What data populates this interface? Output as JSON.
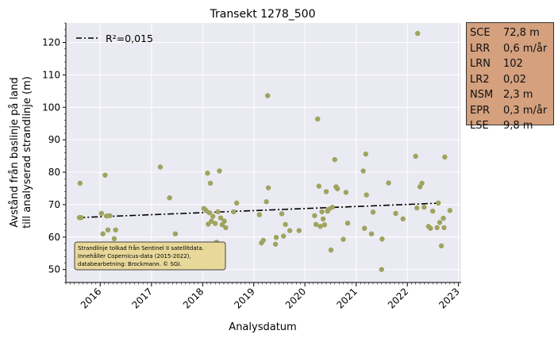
{
  "chart_data": {
    "type": "scatter",
    "title": "Transekt 1278_500",
    "xlabel": "Analysdatum",
    "ylabel_line1": "Avstånd från baslinje på land",
    "ylabel_line2": "till analyserad strandlinje (m)",
    "x_range": [
      "2015-05-01",
      "2023-01-20"
    ],
    "ylim": [
      46,
      126
    ],
    "x_ticks": [
      "2016",
      "2017",
      "2018",
      "2019",
      "2020",
      "2021",
      "2022",
      "2023"
    ],
    "y_ticks": [
      50,
      60,
      70,
      80,
      90,
      100,
      110,
      120
    ],
    "grid": true,
    "legend": {
      "position": "top-left",
      "label": "R²=0,015"
    },
    "trend": {
      "x": [
        "2015-08-01",
        "2022-09-10"
      ],
      "y": [
        66,
        70.5
      ]
    },
    "points": [
      {
        "x": "2015-08-05",
        "y": 66.0
      },
      {
        "x": "2015-08-10",
        "y": 76.6
      },
      {
        "x": "2015-08-18",
        "y": 66.0
      },
      {
        "x": "2016-01-10",
        "y": 67.3
      },
      {
        "x": "2016-01-20",
        "y": 61.0
      },
      {
        "x": "2016-02-05",
        "y": 79.1
      },
      {
        "x": "2016-02-15",
        "y": 66.5
      },
      {
        "x": "2016-02-25",
        "y": 62.2
      },
      {
        "x": "2016-03-10",
        "y": 66.6
      },
      {
        "x": "2016-04-10",
        "y": 59.5
      },
      {
        "x": "2016-04-20",
        "y": 62.2
      },
      {
        "x": "2017-03-05",
        "y": 81.6
      },
      {
        "x": "2017-05-10",
        "y": 72.1
      },
      {
        "x": "2017-06-20",
        "y": 61.0
      },
      {
        "x": "2018-01-10",
        "y": 68.8
      },
      {
        "x": "2018-01-25",
        "y": 68.2
      },
      {
        "x": "2018-02-05",
        "y": 79.7
      },
      {
        "x": "2018-02-10",
        "y": 64.0
      },
      {
        "x": "2018-02-18",
        "y": 67.5
      },
      {
        "x": "2018-02-25",
        "y": 76.6
      },
      {
        "x": "2018-03-05",
        "y": 64.9
      },
      {
        "x": "2018-03-15",
        "y": 66.4
      },
      {
        "x": "2018-04-01",
        "y": 64.2
      },
      {
        "x": "2018-04-10",
        "y": 58.4
      },
      {
        "x": "2018-04-20",
        "y": 67.8
      },
      {
        "x": "2018-05-01",
        "y": 80.4
      },
      {
        "x": "2018-05-10",
        "y": 65.9
      },
      {
        "x": "2018-05-20",
        "y": 63.8
      },
      {
        "x": "2018-06-05",
        "y": 64.9
      },
      {
        "x": "2018-06-15",
        "y": 62.9
      },
      {
        "x": "2018-08-10",
        "y": 67.8
      },
      {
        "x": "2018-09-01",
        "y": 70.5
      },
      {
        "x": "2019-02-10",
        "y": 66.9
      },
      {
        "x": "2019-02-25",
        "y": 58.2
      },
      {
        "x": "2019-03-10",
        "y": 59.0
      },
      {
        "x": "2019-04-01",
        "y": 70.9
      },
      {
        "x": "2019-04-10",
        "y": 103.6
      },
      {
        "x": "2019-04-15",
        "y": 75.2
      },
      {
        "x": "2019-06-05",
        "y": 57.8
      },
      {
        "x": "2019-06-10",
        "y": 59.9
      },
      {
        "x": "2019-07-20",
        "y": 67.2
      },
      {
        "x": "2019-08-01",
        "y": 60.3
      },
      {
        "x": "2019-08-15",
        "y": 63.9
      },
      {
        "x": "2019-09-15",
        "y": 62.0
      },
      {
        "x": "2019-11-20",
        "y": 62.0
      },
      {
        "x": "2020-03-10",
        "y": 66.6
      },
      {
        "x": "2020-03-20",
        "y": 63.9
      },
      {
        "x": "2020-04-01",
        "y": 96.4
      },
      {
        "x": "2020-04-10",
        "y": 75.7
      },
      {
        "x": "2020-04-20",
        "y": 63.3
      },
      {
        "x": "2020-05-01",
        "y": 67.8
      },
      {
        "x": "2020-05-10",
        "y": 65.6
      },
      {
        "x": "2020-05-20",
        "y": 63.8
      },
      {
        "x": "2020-06-01",
        "y": 74.0
      },
      {
        "x": "2020-06-10",
        "y": 68.0
      },
      {
        "x": "2020-06-20",
        "y": 68.6
      },
      {
        "x": "2020-07-05",
        "y": 56.0
      },
      {
        "x": "2020-07-15",
        "y": 69.2
      },
      {
        "x": "2020-08-01",
        "y": 83.9
      },
      {
        "x": "2020-08-10",
        "y": 75.5
      },
      {
        "x": "2020-08-20",
        "y": 74.9
      },
      {
        "x": "2020-10-01",
        "y": 59.3
      },
      {
        "x": "2020-10-20",
        "y": 73.8
      },
      {
        "x": "2020-11-01",
        "y": 64.3
      },
      {
        "x": "2021-02-20",
        "y": 80.4
      },
      {
        "x": "2021-03-01",
        "y": 62.7
      },
      {
        "x": "2021-03-10",
        "y": 85.6
      },
      {
        "x": "2021-03-15",
        "y": 73.0
      },
      {
        "x": "2021-04-20",
        "y": 61.0
      },
      {
        "x": "2021-05-01",
        "y": 67.7
      },
      {
        "x": "2021-07-01",
        "y": 50.0
      },
      {
        "x": "2021-07-05",
        "y": 59.4
      },
      {
        "x": "2021-08-20",
        "y": 76.7
      },
      {
        "x": "2021-10-10",
        "y": 67.3
      },
      {
        "x": "2021-12-01",
        "y": 65.6
      },
      {
        "x": "2022-03-01",
        "y": 84.9
      },
      {
        "x": "2022-03-10",
        "y": 69.0
      },
      {
        "x": "2022-03-15",
        "y": 122.8
      },
      {
        "x": "2022-04-01",
        "y": 75.5
      },
      {
        "x": "2022-04-15",
        "y": 76.6
      },
      {
        "x": "2022-05-01",
        "y": 69.2
      },
      {
        "x": "2022-06-01",
        "y": 63.3
      },
      {
        "x": "2022-06-15",
        "y": 62.7
      },
      {
        "x": "2022-07-01",
        "y": 68.0
      },
      {
        "x": "2022-08-01",
        "y": 62.9
      },
      {
        "x": "2022-08-10",
        "y": 70.5
      },
      {
        "x": "2022-08-20",
        "y": 64.5
      },
      {
        "x": "2022-09-01",
        "y": 57.3
      },
      {
        "x": "2022-09-15",
        "y": 65.8
      },
      {
        "x": "2022-09-20",
        "y": 62.9
      },
      {
        "x": "2022-09-25",
        "y": 84.7
      },
      {
        "x": "2022-11-01",
        "y": 68.2
      }
    ],
    "colors": {
      "plot_bg": "#eaeaf2",
      "grid": "#ffffff",
      "points": "#a0a35e",
      "trend": "#000000",
      "note_bg": "#e8d99a",
      "stats_bg": "#d4a07e"
    },
    "note_lines": [
      "Strandlinje tolkad från Sentinel II satellitdata.",
      "Innehåller Copernicus-data (2015-2022),",
      "databearbetning: Brockmann. © SGI."
    ]
  },
  "stats": [
    {
      "key": "SCE",
      "value": "72,8 m"
    },
    {
      "key": "LRR",
      "value": "0,6 m/år"
    },
    {
      "key": "LRN",
      "value": "102"
    },
    {
      "key": "LR2",
      "value": "0,02"
    },
    {
      "key": "NSM",
      "value": "2,3 m"
    },
    {
      "key": "EPR",
      "value": "0,3 m/år"
    },
    {
      "key": "LSE",
      "value": "9,8 m"
    }
  ]
}
